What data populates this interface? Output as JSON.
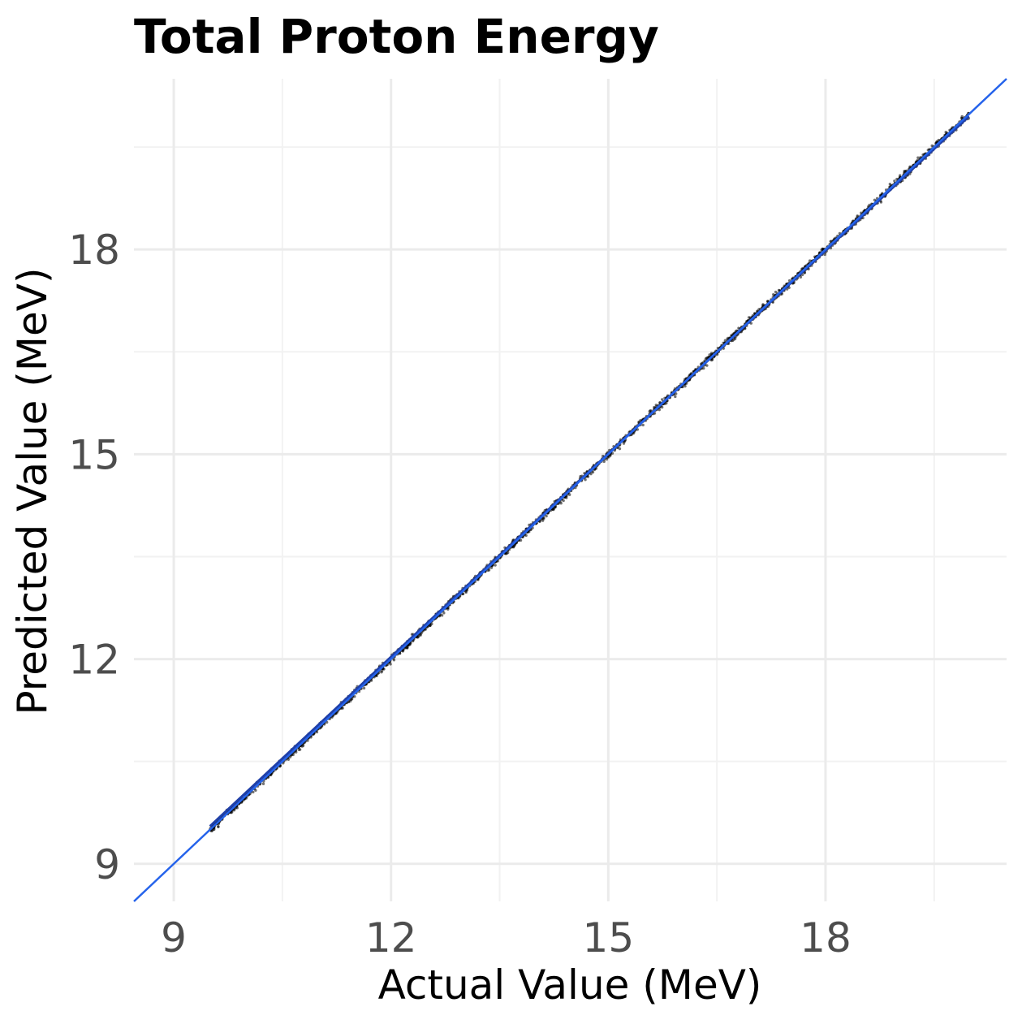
{
  "chart_data": {
    "type": "scatter",
    "title": "Total Proton Energy",
    "xlabel": "Actual Value (MeV)",
    "ylabel": "Predicted Value (MeV)",
    "xlim": [
      8.45,
      20.5
    ],
    "ylim": [
      8.45,
      20.5
    ],
    "x_ticks": [
      9,
      12,
      15,
      18
    ],
    "y_ticks": [
      9,
      12,
      15,
      18
    ],
    "x_minor": [
      10.5,
      13.5,
      16.5,
      19.5
    ],
    "y_minor": [
      10.5,
      13.5,
      16.5,
      19.5
    ],
    "grid": true,
    "series": [
      {
        "name": "predictions",
        "color": "#000000",
        "x_range": [
          9.5,
          19.98
        ],
        "y_noise": 0.06,
        "n_points": 2500
      },
      {
        "name": "identity line",
        "color": "#2563eb",
        "line": "y = x",
        "x": [
          8.45,
          20.5
        ],
        "y": [
          8.45,
          20.5
        ]
      },
      {
        "name": "fit line",
        "color": "#1f3fa8",
        "x": [
          9.5,
          19.98
        ],
        "y": [
          9.55,
          19.95
        ]
      }
    ]
  }
}
